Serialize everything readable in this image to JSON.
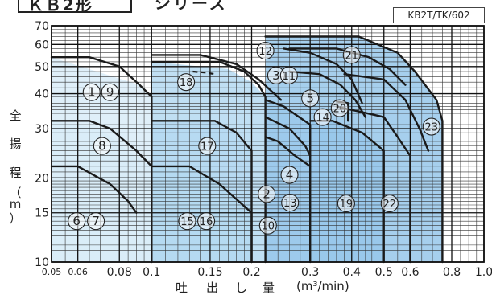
{
  "header": {
    "title": "ＫＢ2形",
    "series": "シリーズ",
    "model_code": "KB2T/TK/602"
  },
  "axis_titles": {
    "y": [
      "全",
      "揚",
      "程",
      "（",
      "m",
      "）"
    ],
    "x": [
      "吐",
      "出",
      "し",
      "量"
    ],
    "x_unit": "(m³/min)"
  },
  "colors": {
    "fill_light": "#d9ecf8",
    "fill_mid": "#b5d9f1",
    "fill_dark": "#96c7ea",
    "curve": "#1a1a1a",
    "grid": "#333333"
  },
  "chart_data": {
    "type": "area",
    "title": "",
    "xlabel": "吐出し量 (m³/min)",
    "ylabel": "全揚程 (m)",
    "x_scale": "log",
    "y_scale": "log",
    "xlim": [
      0.05,
      1.0
    ],
    "ylim": [
      10,
      70
    ],
    "grid": true,
    "x_ticks": [
      {
        "value": 0.05,
        "label": "0.05"
      },
      {
        "value": 0.06,
        "label": "0.06"
      },
      {
        "value": 0.08,
        "label": "0.08"
      },
      {
        "value": 0.1,
        "label": "0.1"
      },
      {
        "value": 0.15,
        "label": "0.15"
      },
      {
        "value": 0.2,
        "label": "0.2"
      },
      {
        "value": 0.3,
        "label": "0.3"
      },
      {
        "value": 0.4,
        "label": "0.4"
      },
      {
        "value": 0.5,
        "label": "0.5"
      },
      {
        "value": 0.6,
        "label": "0.6"
      },
      {
        "value": 0.8,
        "label": "0.8"
      },
      {
        "value": 1.0,
        "label": "1.0"
      }
    ],
    "y_ticks": [
      {
        "value": 10,
        "label": "10"
      },
      {
        "value": 15,
        "label": "15"
      },
      {
        "value": 20,
        "label": "20"
      },
      {
        "value": 30,
        "label": "30"
      },
      {
        "value": 40,
        "label": "40"
      },
      {
        "value": 50,
        "label": "50"
      },
      {
        "value": 60,
        "label": "60"
      },
      {
        "value": 70,
        "label": "70"
      }
    ],
    "regions": [
      {
        "shade": "light",
        "points": [
          [
            0.05,
            10
          ],
          [
            0.05,
            54
          ],
          [
            0.092,
            43
          ],
          [
            0.1,
            39
          ],
          [
            0.1,
            10
          ]
        ]
      },
      {
        "shade": "light",
        "points": [
          [
            0.05,
            10
          ],
          [
            0.05,
            32
          ],
          [
            0.07,
            30
          ],
          [
            0.085,
            25
          ],
          [
            0.1,
            22
          ],
          [
            0.1,
            10
          ]
        ]
      },
      {
        "shade": "light",
        "points": [
          [
            0.05,
            10
          ],
          [
            0.05,
            22
          ],
          [
            0.065,
            20
          ],
          [
            0.08,
            17
          ],
          [
            0.09,
            15
          ],
          [
            0.1,
            15
          ],
          [
            0.1,
            10
          ]
        ]
      },
      {
        "shade": "mid",
        "points": [
          [
            0.1,
            10
          ],
          [
            0.1,
            52
          ],
          [
            0.17,
            49
          ],
          [
            0.2,
            44
          ],
          [
            0.22,
            39
          ],
          [
            0.22,
            10
          ]
        ]
      },
      {
        "shade": "mid",
        "points": [
          [
            0.1,
            10
          ],
          [
            0.1,
            32
          ],
          [
            0.155,
            32
          ],
          [
            0.18,
            29
          ],
          [
            0.2,
            25
          ],
          [
            0.2,
            10
          ]
        ]
      },
      {
        "shade": "mid",
        "points": [
          [
            0.1,
            10
          ],
          [
            0.1,
            22
          ],
          [
            0.13,
            22
          ],
          [
            0.16,
            19
          ],
          [
            0.2,
            15
          ],
          [
            0.2,
            10
          ]
        ]
      },
      {
        "shade": "mid",
        "points": [
          [
            0.22,
            10
          ],
          [
            0.22,
            38
          ],
          [
            0.25,
            36
          ],
          [
            0.3,
            31
          ],
          [
            0.3,
            10
          ]
        ]
      },
      {
        "shade": "dark",
        "points": [
          [
            0.3,
            10
          ],
          [
            0.3,
            32
          ],
          [
            0.35,
            32
          ],
          [
            0.43,
            29
          ],
          [
            0.5,
            25
          ],
          [
            0.5,
            10
          ]
        ]
      },
      {
        "shade": "dark",
        "points": [
          [
            0.22,
            10
          ],
          [
            0.22,
            64
          ],
          [
            0.42,
            64
          ],
          [
            0.55,
            56
          ],
          [
            0.62,
            48
          ],
          [
            0.72,
            38
          ],
          [
            0.75,
            32
          ],
          [
            0.75,
            10
          ]
        ]
      }
    ],
    "curves": [
      {
        "points": [
          [
            0.05,
            54
          ],
          [
            0.065,
            54
          ],
          [
            0.08,
            50
          ],
          [
            0.092,
            43
          ],
          [
            0.1,
            39
          ],
          [
            0.1,
            10
          ]
        ]
      },
      {
        "points": [
          [
            0.05,
            32
          ],
          [
            0.065,
            32
          ],
          [
            0.075,
            30
          ],
          [
            0.09,
            25
          ],
          [
            0.1,
            22
          ]
        ]
      },
      {
        "points": [
          [
            0.05,
            22
          ],
          [
            0.06,
            22
          ],
          [
            0.075,
            19
          ],
          [
            0.085,
            16.5
          ],
          [
            0.09,
            15
          ]
        ]
      },
      {
        "points": [
          [
            0.1,
            52
          ],
          [
            0.16,
            52
          ],
          [
            0.19,
            48
          ],
          [
            0.21,
            43
          ],
          [
            0.22,
            39
          ],
          [
            0.22,
            10
          ]
        ]
      },
      {
        "points": [
          [
            0.1,
            55
          ],
          [
            0.14,
            55
          ],
          [
            0.18,
            51
          ],
          [
            0.21,
            45
          ],
          [
            0.245,
            38
          ]
        ]
      },
      {
        "points": [
          [
            0.1,
            32
          ],
          [
            0.155,
            32
          ],
          [
            0.18,
            29
          ],
          [
            0.2,
            25
          ],
          [
            0.2,
            10
          ]
        ]
      },
      {
        "points": [
          [
            0.1,
            22
          ],
          [
            0.13,
            22
          ],
          [
            0.16,
            19
          ],
          [
            0.2,
            15
          ],
          [
            0.2,
            10
          ]
        ]
      },
      {
        "points": [
          [
            0.22,
            38
          ],
          [
            0.25,
            36
          ],
          [
            0.3,
            31
          ],
          [
            0.3,
            10
          ]
        ]
      },
      {
        "points": [
          [
            0.22,
            33
          ],
          [
            0.26,
            30
          ],
          [
            0.29,
            26
          ],
          [
            0.3,
            24
          ]
        ]
      },
      {
        "points": [
          [
            0.22,
            28
          ],
          [
            0.24,
            27
          ],
          [
            0.27,
            24
          ],
          [
            0.3,
            22
          ]
        ]
      },
      {
        "points": [
          [
            0.25,
            58
          ],
          [
            0.3,
            56
          ],
          [
            0.36,
            51
          ],
          [
            0.4,
            45
          ],
          [
            0.43,
            37
          ]
        ]
      },
      {
        "points": [
          [
            0.26,
            48
          ],
          [
            0.32,
            47
          ],
          [
            0.37,
            43
          ],
          [
            0.41,
            38
          ],
          [
            0.44,
            33
          ]
        ]
      },
      {
        "points": [
          [
            0.3,
            32
          ],
          [
            0.35,
            32
          ],
          [
            0.43,
            29
          ],
          [
            0.5,
            25
          ],
          [
            0.5,
            10
          ]
        ]
      },
      {
        "points": [
          [
            0.36,
            36
          ],
          [
            0.4,
            35
          ],
          [
            0.5,
            33
          ],
          [
            0.55,
            28
          ],
          [
            0.6,
            24
          ],
          [
            0.6,
            10
          ]
        ]
      },
      {
        "points": [
          [
            0.38,
            47
          ],
          [
            0.5,
            45
          ],
          [
            0.58,
            38
          ],
          [
            0.64,
            30
          ],
          [
            0.68,
            25
          ]
        ]
      },
      {
        "points": [
          [
            0.22,
            64
          ],
          [
            0.42,
            64
          ],
          [
            0.55,
            56
          ],
          [
            0.62,
            48
          ],
          [
            0.72,
            38
          ],
          [
            0.75,
            32
          ],
          [
            0.75,
            10
          ]
        ]
      },
      {
        "points": [
          [
            0.26,
            58
          ],
          [
            0.36,
            58
          ],
          [
            0.45,
            54
          ],
          [
            0.52,
            49
          ],
          [
            0.58,
            43
          ]
        ]
      },
      {
        "points": [
          [
            0.36,
            37.5
          ],
          [
            0.39,
            37
          ],
          [
            0.39,
            32
          ]
        ]
      }
    ],
    "dashed_curves": [
      {
        "points": [
          [
            0.133,
            48
          ],
          [
            0.145,
            47.6
          ],
          [
            0.155,
            47
          ]
        ]
      }
    ],
    "markers": [
      {
        "label": "1",
        "x": 0.066,
        "y": 40.5
      },
      {
        "label": "9",
        "x": 0.075,
        "y": 40.5
      },
      {
        "label": "8",
        "x": 0.071,
        "y": 26
      },
      {
        "label": "6",
        "x": 0.0595,
        "y": 14
      },
      {
        "label": "7",
        "x": 0.068,
        "y": 14
      },
      {
        "label": "18",
        "x": 0.127,
        "y": 44
      },
      {
        "label": "17",
        "x": 0.147,
        "y": 26
      },
      {
        "label": "15",
        "x": 0.128,
        "y": 14
      },
      {
        "label": "16",
        "x": 0.146,
        "y": 14
      },
      {
        "label": "12",
        "x": 0.22,
        "y": 57
      },
      {
        "label": "3",
        "x": 0.237,
        "y": 46.5
      },
      {
        "label": "11",
        "x": 0.259,
        "y": 46.5
      },
      {
        "label": "5",
        "x": 0.3,
        "y": 38.5
      },
      {
        "label": "14",
        "x": 0.327,
        "y": 33
      },
      {
        "label": "20",
        "x": 0.368,
        "y": 35.5
      },
      {
        "label": "21",
        "x": 0.4,
        "y": 55
      },
      {
        "label": "23",
        "x": 0.695,
        "y": 30.5
      },
      {
        "label": "4",
        "x": 0.26,
        "y": 20.5
      },
      {
        "label": "2",
        "x": 0.222,
        "y": 17.5
      },
      {
        "label": "13",
        "x": 0.261,
        "y": 16.3
      },
      {
        "label": "10",
        "x": 0.224,
        "y": 13.5
      },
      {
        "label": "19",
        "x": 0.385,
        "y": 16.2
      },
      {
        "label": "22",
        "x": 0.52,
        "y": 16.2
      }
    ]
  }
}
